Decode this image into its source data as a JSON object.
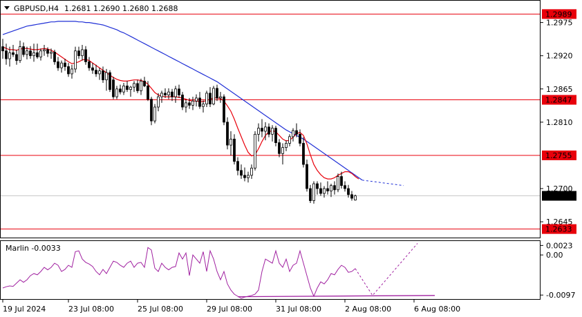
{
  "colors": {
    "background": "#ffffff",
    "axis": "#000000",
    "grid": "#c8c8c8",
    "candle_bull_body": "#ffffff",
    "candle_bear_body": "#000000",
    "candle_outline": "#000000",
    "ma_fast": "#e8000b",
    "ma_slow": "#1f2fd6",
    "level_line": "#e8000b",
    "level_badge_bg": "#e8000b",
    "level_badge_text": "#ffffff",
    "current_price_badge_bg": "#000000",
    "current_price_badge_text": "#ffffff",
    "oscillator": "#a020a0"
  },
  "chart_data": [
    {
      "type": "candlestick",
      "title": "GBPUSD,H4",
      "ohlc_label": "1.2681 1.2690 1.2680 1.2688",
      "timeframe": "H4",
      "x_labels": [
        "19 Jul 2024",
        "23 Jul 08:00",
        "25 Jul 08:00",
        "29 Jul 08:00",
        "31 Jul 08:00",
        "2 Aug 08:00",
        "6 Aug 08:00"
      ],
      "x_label_bar_index": [
        0,
        19,
        39,
        59,
        79,
        99,
        119
      ],
      "y_ticks": [
        "1.2975",
        "1.2920",
        "1.2865",
        "1.2810",
        "1.2700",
        "1.2645"
      ],
      "ylim": [
        1.262,
        1.301
      ],
      "grid": false,
      "current_price": "1.2688",
      "levels": [
        "1.2989",
        "1.2847",
        "1.2755",
        "1.2633"
      ],
      "candles": [
        [
          1.2935,
          1.2948,
          1.2915,
          1.2928
        ],
        [
          1.2928,
          1.294,
          1.2905,
          1.2915
        ],
        [
          1.2915,
          1.2935,
          1.2902,
          1.2925
        ],
        [
          1.2925,
          1.2938,
          1.2918,
          1.2922
        ],
        [
          1.2922,
          1.293,
          1.2905,
          1.2912
        ],
        [
          1.2912,
          1.2945,
          1.2908,
          1.2935
        ],
        [
          1.2935,
          1.2942,
          1.2918,
          1.2922
        ],
        [
          1.2922,
          1.2935,
          1.2914,
          1.2928
        ],
        [
          1.2928,
          1.2936,
          1.2915,
          1.292
        ],
        [
          1.292,
          1.294,
          1.291,
          1.2925
        ],
        [
          1.2925,
          1.294,
          1.2915,
          1.2918
        ],
        [
          1.2918,
          1.2932,
          1.2912,
          1.2928
        ],
        [
          1.2928,
          1.2938,
          1.292,
          1.293
        ],
        [
          1.293,
          1.2934,
          1.2918,
          1.2924
        ],
        [
          1.2924,
          1.2932,
          1.2915,
          1.2926
        ],
        [
          1.2926,
          1.293,
          1.2905,
          1.291
        ],
        [
          1.291,
          1.2918,
          1.2895,
          1.29
        ],
        [
          1.29,
          1.2912,
          1.2892,
          1.2908
        ],
        [
          1.2908,
          1.2915,
          1.2895,
          1.2902
        ],
        [
          1.2902,
          1.2908,
          1.2885,
          1.289
        ],
        [
          1.289,
          1.2905,
          1.2882,
          1.2898
        ],
        [
          1.2898,
          1.2935,
          1.2892,
          1.2928
        ],
        [
          1.2928,
          1.2935,
          1.2915,
          1.292
        ],
        [
          1.292,
          1.2938,
          1.2912,
          1.293
        ],
        [
          1.293,
          1.2936,
          1.2905,
          1.291
        ],
        [
          1.291,
          1.2918,
          1.2895,
          1.29
        ],
        [
          1.29,
          1.2908,
          1.289,
          1.2896
        ],
        [
          1.2896,
          1.2905,
          1.2885,
          1.289
        ],
        [
          1.289,
          1.29,
          1.288,
          1.2895
        ],
        [
          1.2895,
          1.2902,
          1.2875,
          1.288
        ],
        [
          1.288,
          1.2898,
          1.2862,
          1.2892
        ],
        [
          1.2892,
          1.2896,
          1.286,
          1.2864
        ],
        [
          1.288,
          1.2885,
          1.2848,
          1.2852
        ],
        [
          1.2852,
          1.287,
          1.2848,
          1.2865
        ],
        [
          1.2865,
          1.2872,
          1.2856,
          1.286
        ],
        [
          1.286,
          1.2875,
          1.2855,
          1.287
        ],
        [
          1.287,
          1.2878,
          1.286,
          1.2864
        ],
        [
          1.2864,
          1.287,
          1.2852,
          1.2868
        ],
        [
          1.2868,
          1.2878,
          1.286,
          1.2874
        ],
        [
          1.2874,
          1.288,
          1.2858,
          1.2862
        ],
        [
          1.2862,
          1.2882,
          1.2855,
          1.2878
        ],
        [
          1.2878,
          1.2885,
          1.2868,
          1.287
        ],
        [
          1.287,
          1.2878,
          1.2845,
          1.2848
        ],
        [
          1.2848,
          1.2852,
          1.2805,
          1.2812
        ],
        [
          1.2812,
          1.284,
          1.2808,
          1.2835
        ],
        [
          1.2835,
          1.2858,
          1.2828,
          1.2852
        ],
        [
          1.2852,
          1.2862,
          1.2842,
          1.2858
        ],
        [
          1.2858,
          1.2866,
          1.285,
          1.2855
        ],
        [
          1.2855,
          1.2866,
          1.2848,
          1.286
        ],
        [
          1.286,
          1.2865,
          1.2845,
          1.2852
        ],
        [
          1.2852,
          1.287,
          1.2842,
          1.2865
        ],
        [
          1.2865,
          1.2872,
          1.285,
          1.2855
        ],
        [
          1.2855,
          1.286,
          1.283,
          1.2835
        ],
        [
          1.2835,
          1.2848,
          1.2826,
          1.2842
        ],
        [
          1.2842,
          1.285,
          1.2832,
          1.2838
        ],
        [
          1.2838,
          1.2852,
          1.283,
          1.2845
        ],
        [
          1.2845,
          1.2856,
          1.2836,
          1.285
        ],
        [
          1.285,
          1.286,
          1.2832,
          1.2836
        ],
        [
          1.2836,
          1.2846,
          1.2826,
          1.284
        ],
        [
          1.284,
          1.2862,
          1.2835,
          1.2858
        ],
        [
          1.2858,
          1.2868,
          1.2835,
          1.284
        ],
        [
          1.284,
          1.287,
          1.2838,
          1.2866
        ],
        [
          1.2866,
          1.2872,
          1.2845,
          1.285
        ],
        [
          1.285,
          1.286,
          1.2842,
          1.2852
        ],
        [
          1.2852,
          1.2856,
          1.2805,
          1.281
        ],
        [
          1.281,
          1.2818,
          1.2765,
          1.2772
        ],
        [
          1.2772,
          1.2795,
          1.2755,
          1.2782
        ],
        [
          1.2782,
          1.279,
          1.274,
          1.2745
        ],
        [
          1.2745,
          1.2752,
          1.2722,
          1.273
        ],
        [
          1.273,
          1.274,
          1.2716,
          1.2722
        ],
        [
          1.2722,
          1.2735,
          1.2712,
          1.2718
        ],
        [
          1.2718,
          1.2728,
          1.271,
          1.2722
        ],
        [
          1.2722,
          1.274,
          1.2716,
          1.2734
        ],
        [
          1.2734,
          1.2795,
          1.273,
          1.279
        ],
        [
          1.279,
          1.2808,
          1.2778,
          1.28
        ],
        [
          1.28,
          1.2815,
          1.2785,
          1.2795
        ],
        [
          1.2795,
          1.281,
          1.278,
          1.2802
        ],
        [
          1.2802,
          1.2808,
          1.2785,
          1.279
        ],
        [
          1.279,
          1.2805,
          1.2778,
          1.28
        ],
        [
          1.28,
          1.2804,
          1.277,
          1.2776
        ],
        [
          1.2776,
          1.2782,
          1.2752,
          1.2758
        ],
        [
          1.2758,
          1.2775,
          1.274,
          1.2768
        ],
        [
          1.2768,
          1.278,
          1.2762,
          1.2775
        ],
        [
          1.2775,
          1.279,
          1.277,
          1.2786
        ],
        [
          1.2786,
          1.28,
          1.2778,
          1.2796
        ],
        [
          1.2796,
          1.2808,
          1.2785,
          1.279
        ],
        [
          1.279,
          1.2798,
          1.277,
          1.2775
        ],
        [
          1.2775,
          1.2785,
          1.2735,
          1.274
        ],
        [
          1.274,
          1.2748,
          1.2695,
          1.27
        ],
        [
          1.27,
          1.2706,
          1.2676,
          1.268
        ],
        [
          1.268,
          1.2712,
          1.2675,
          1.2708
        ],
        [
          1.2708,
          1.2712,
          1.269,
          1.27
        ],
        [
          1.27,
          1.271,
          1.2688,
          1.2692
        ],
        [
          1.2692,
          1.2704,
          1.2685,
          1.27
        ],
        [
          1.27,
          1.2712,
          1.269,
          1.2696
        ],
        [
          1.2696,
          1.2708,
          1.2686,
          1.2705
        ],
        [
          1.2705,
          1.2712,
          1.269,
          1.2698
        ],
        [
          1.2698,
          1.2725,
          1.2694,
          1.272
        ],
        [
          1.272,
          1.2728,
          1.27,
          1.2705
        ],
        [
          1.2705,
          1.2712,
          1.2695,
          1.27
        ],
        [
          1.27,
          1.2706,
          1.2685,
          1.269
        ],
        [
          1.269,
          1.2696,
          1.268,
          1.2684
        ],
        [
          1.2681,
          1.269,
          1.268,
          1.2688
        ]
      ],
      "series": [
        {
          "values": [
            1.2935,
            1.2932,
            1.293,
            1.293,
            1.2929,
            1.2931,
            1.2932,
            1.2932,
            1.2931,
            1.293,
            1.293,
            1.2931,
            1.2932,
            1.2931,
            1.2929,
            1.2926,
            1.2922,
            1.2918,
            1.2914,
            1.291,
            1.2907,
            1.2908,
            1.291,
            1.2913,
            1.2914,
            1.2912,
            1.2908,
            1.2904,
            1.29,
            1.2896,
            1.2892,
            1.2888,
            1.2884,
            1.2881,
            1.2879,
            1.2878,
            1.2878,
            1.2879,
            1.288,
            1.288,
            1.2879,
            1.2877,
            1.2873,
            1.2866,
            1.2859,
            1.2855,
            1.2853,
            1.2852,
            1.2852,
            1.2852,
            1.2852,
            1.2851,
            1.285,
            1.2848,
            1.2846,
            1.2845,
            1.2845,
            1.2844,
            1.2844,
            1.2846,
            1.2848,
            1.285,
            1.285,
            1.2849,
            1.2845,
            1.2837,
            1.2828,
            1.2815,
            1.28,
            1.2786,
            1.2772,
            1.276,
            1.2754,
            1.2756,
            1.2766,
            1.2778,
            1.2788,
            1.2794,
            1.2796,
            1.2794,
            1.2788,
            1.2782,
            1.2779,
            1.278,
            1.2785,
            1.2791,
            1.2793,
            1.2788,
            1.2774,
            1.2756,
            1.274,
            1.273,
            1.2723,
            1.2718,
            1.2716,
            1.2716,
            1.2718,
            1.2722,
            1.2725,
            1.2728,
            1.2728,
            1.2725,
            1.272,
            1.2716
          ]
        },
        {
          "values": [
            1.2955,
            1.2957,
            1.2959,
            1.2961,
            1.2963,
            1.2965,
            1.2967,
            1.2969,
            1.297,
            1.2971,
            1.2972,
            1.2973,
            1.2974,
            1.2975,
            1.2976,
            1.2976,
            1.2977,
            1.2977,
            1.2977,
            1.2977,
            1.2977,
            1.2977,
            1.2976,
            1.2976,
            1.2975,
            1.2975,
            1.2974,
            1.2973,
            1.2972,
            1.2971,
            1.2969,
            1.2967,
            1.2965,
            1.2963,
            1.296,
            1.2958,
            1.2955,
            1.2952,
            1.2949,
            1.2946,
            1.2943,
            1.294,
            1.2937,
            1.2934,
            1.2931,
            1.2928,
            1.2925,
            1.2922,
            1.2919,
            1.2916,
            1.2913,
            1.291,
            1.2907,
            1.2904,
            1.2901,
            1.2898,
            1.2895,
            1.2892,
            1.2889,
            1.2886,
            1.2883,
            1.288,
            1.2877,
            1.2873,
            1.2869,
            1.2865,
            1.2861,
            1.2857,
            1.2853,
            1.2849,
            1.2845,
            1.2841,
            1.2837,
            1.2833,
            1.2829,
            1.2825,
            1.2821,
            1.2817,
            1.2813,
            1.2809,
            1.2805,
            1.2801,
            1.2797,
            1.2794,
            1.2791,
            1.2788,
            1.2785,
            1.2782,
            1.2778,
            1.2774,
            1.277,
            1.2766,
            1.2762,
            1.2758,
            1.2754,
            1.275,
            1.2746,
            1.2742,
            1.2738,
            1.2734,
            1.273,
            1.2726,
            1.2722,
            1.2718,
            1.2714
          ],
          "projection_end": 1.2705
        }
      ]
    },
    {
      "type": "line",
      "title": "Marlin -0.0033",
      "y_ticks": [
        "0.0023",
        "0.00",
        "-0.0097"
      ],
      "ylim": [
        -0.0105,
        0.0032
      ],
      "series": [
        {
          "values": [
            -0.008,
            -0.0077,
            -0.0075,
            -0.0076,
            -0.0068,
            -0.006,
            -0.0066,
            -0.006,
            -0.005,
            -0.0045,
            -0.0048,
            -0.004,
            -0.003,
            -0.0036,
            -0.003,
            -0.002,
            -0.0025,
            -0.004,
            -0.0035,
            -0.0025,
            -0.003,
            0.0008,
            0.001,
            -0.001,
            -0.0018,
            -0.0022,
            -0.0028,
            -0.004,
            -0.0048,
            -0.0035,
            -0.0045,
            -0.003,
            -0.0015,
            -0.0018,
            -0.0025,
            -0.003,
            -0.002,
            -0.0015,
            -0.003,
            -0.002,
            -0.0018,
            -0.003,
            0.0018,
            0.0012,
            -0.0032,
            -0.004,
            -0.002,
            -0.003,
            -0.0036,
            -0.003,
            -0.0028,
            0.0005,
            -0.001,
            0.0005,
            -0.005,
            0.0,
            -0.001,
            -0.002,
            0.0008,
            -0.004,
            0.001,
            -0.001,
            -0.004,
            -0.006,
            -0.004,
            -0.007,
            -0.0085,
            -0.0095,
            -0.01,
            -0.0105,
            -0.0102,
            -0.01,
            -0.0098,
            -0.0095,
            -0.0085,
            -0.004,
            -0.001,
            -0.0015,
            -0.002,
            0.001,
            -0.002,
            -0.003,
            -0.001,
            -0.004,
            -0.0025,
            -0.002,
            0.001,
            -0.002,
            -0.005,
            -0.008,
            -0.01,
            -0.008,
            -0.0065,
            -0.007,
            -0.006,
            -0.0045,
            -0.0048,
            -0.0035,
            -0.0025,
            -0.003,
            -0.0042,
            -0.004,
            -0.0033
          ]
        },
        {
          "values": [
            -0.0101,
            -0.0098
          ],
          "x_index": [
            68,
            125
          ]
        }
      ]
    }
  ]
}
